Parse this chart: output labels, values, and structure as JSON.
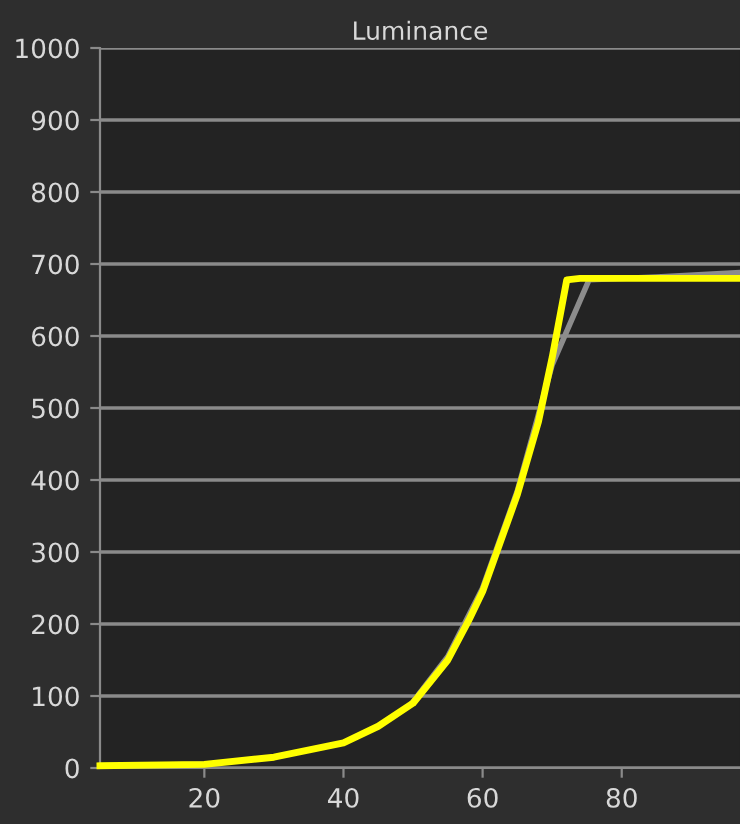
{
  "chart_data": {
    "type": "line",
    "title": "Luminance",
    "xlim": [
      5,
      97
    ],
    "xticks": [
      20,
      40,
      60,
      80
    ],
    "ylim": [
      0,
      1000
    ],
    "yticks": [
      0,
      100,
      200,
      300,
      400,
      500,
      600,
      700,
      800,
      900,
      1000
    ],
    "grid": "y",
    "marker": "none",
    "line_style": "solid",
    "series": [
      {
        "color": "#8c8c8c",
        "x": [
          5,
          20,
          30,
          40,
          45,
          50,
          55,
          60,
          65,
          70,
          75.3,
          85,
          97
        ],
        "values": [
          3,
          5,
          null,
          null,
          null,
          92,
          155,
          250,
          385,
          560,
          678,
          682,
          688
        ]
      },
      {
        "color": "#ffff00",
        "x": [
          5,
          20,
          30,
          40,
          45,
          50,
          55,
          58,
          60,
          65,
          68,
          70,
          72.1,
          74,
          97
        ],
        "values": [
          3,
          5,
          15,
          35,
          58,
          90,
          150,
          205,
          245,
          380,
          480,
          570,
          678,
          680,
          680
        ]
      }
    ]
  }
}
